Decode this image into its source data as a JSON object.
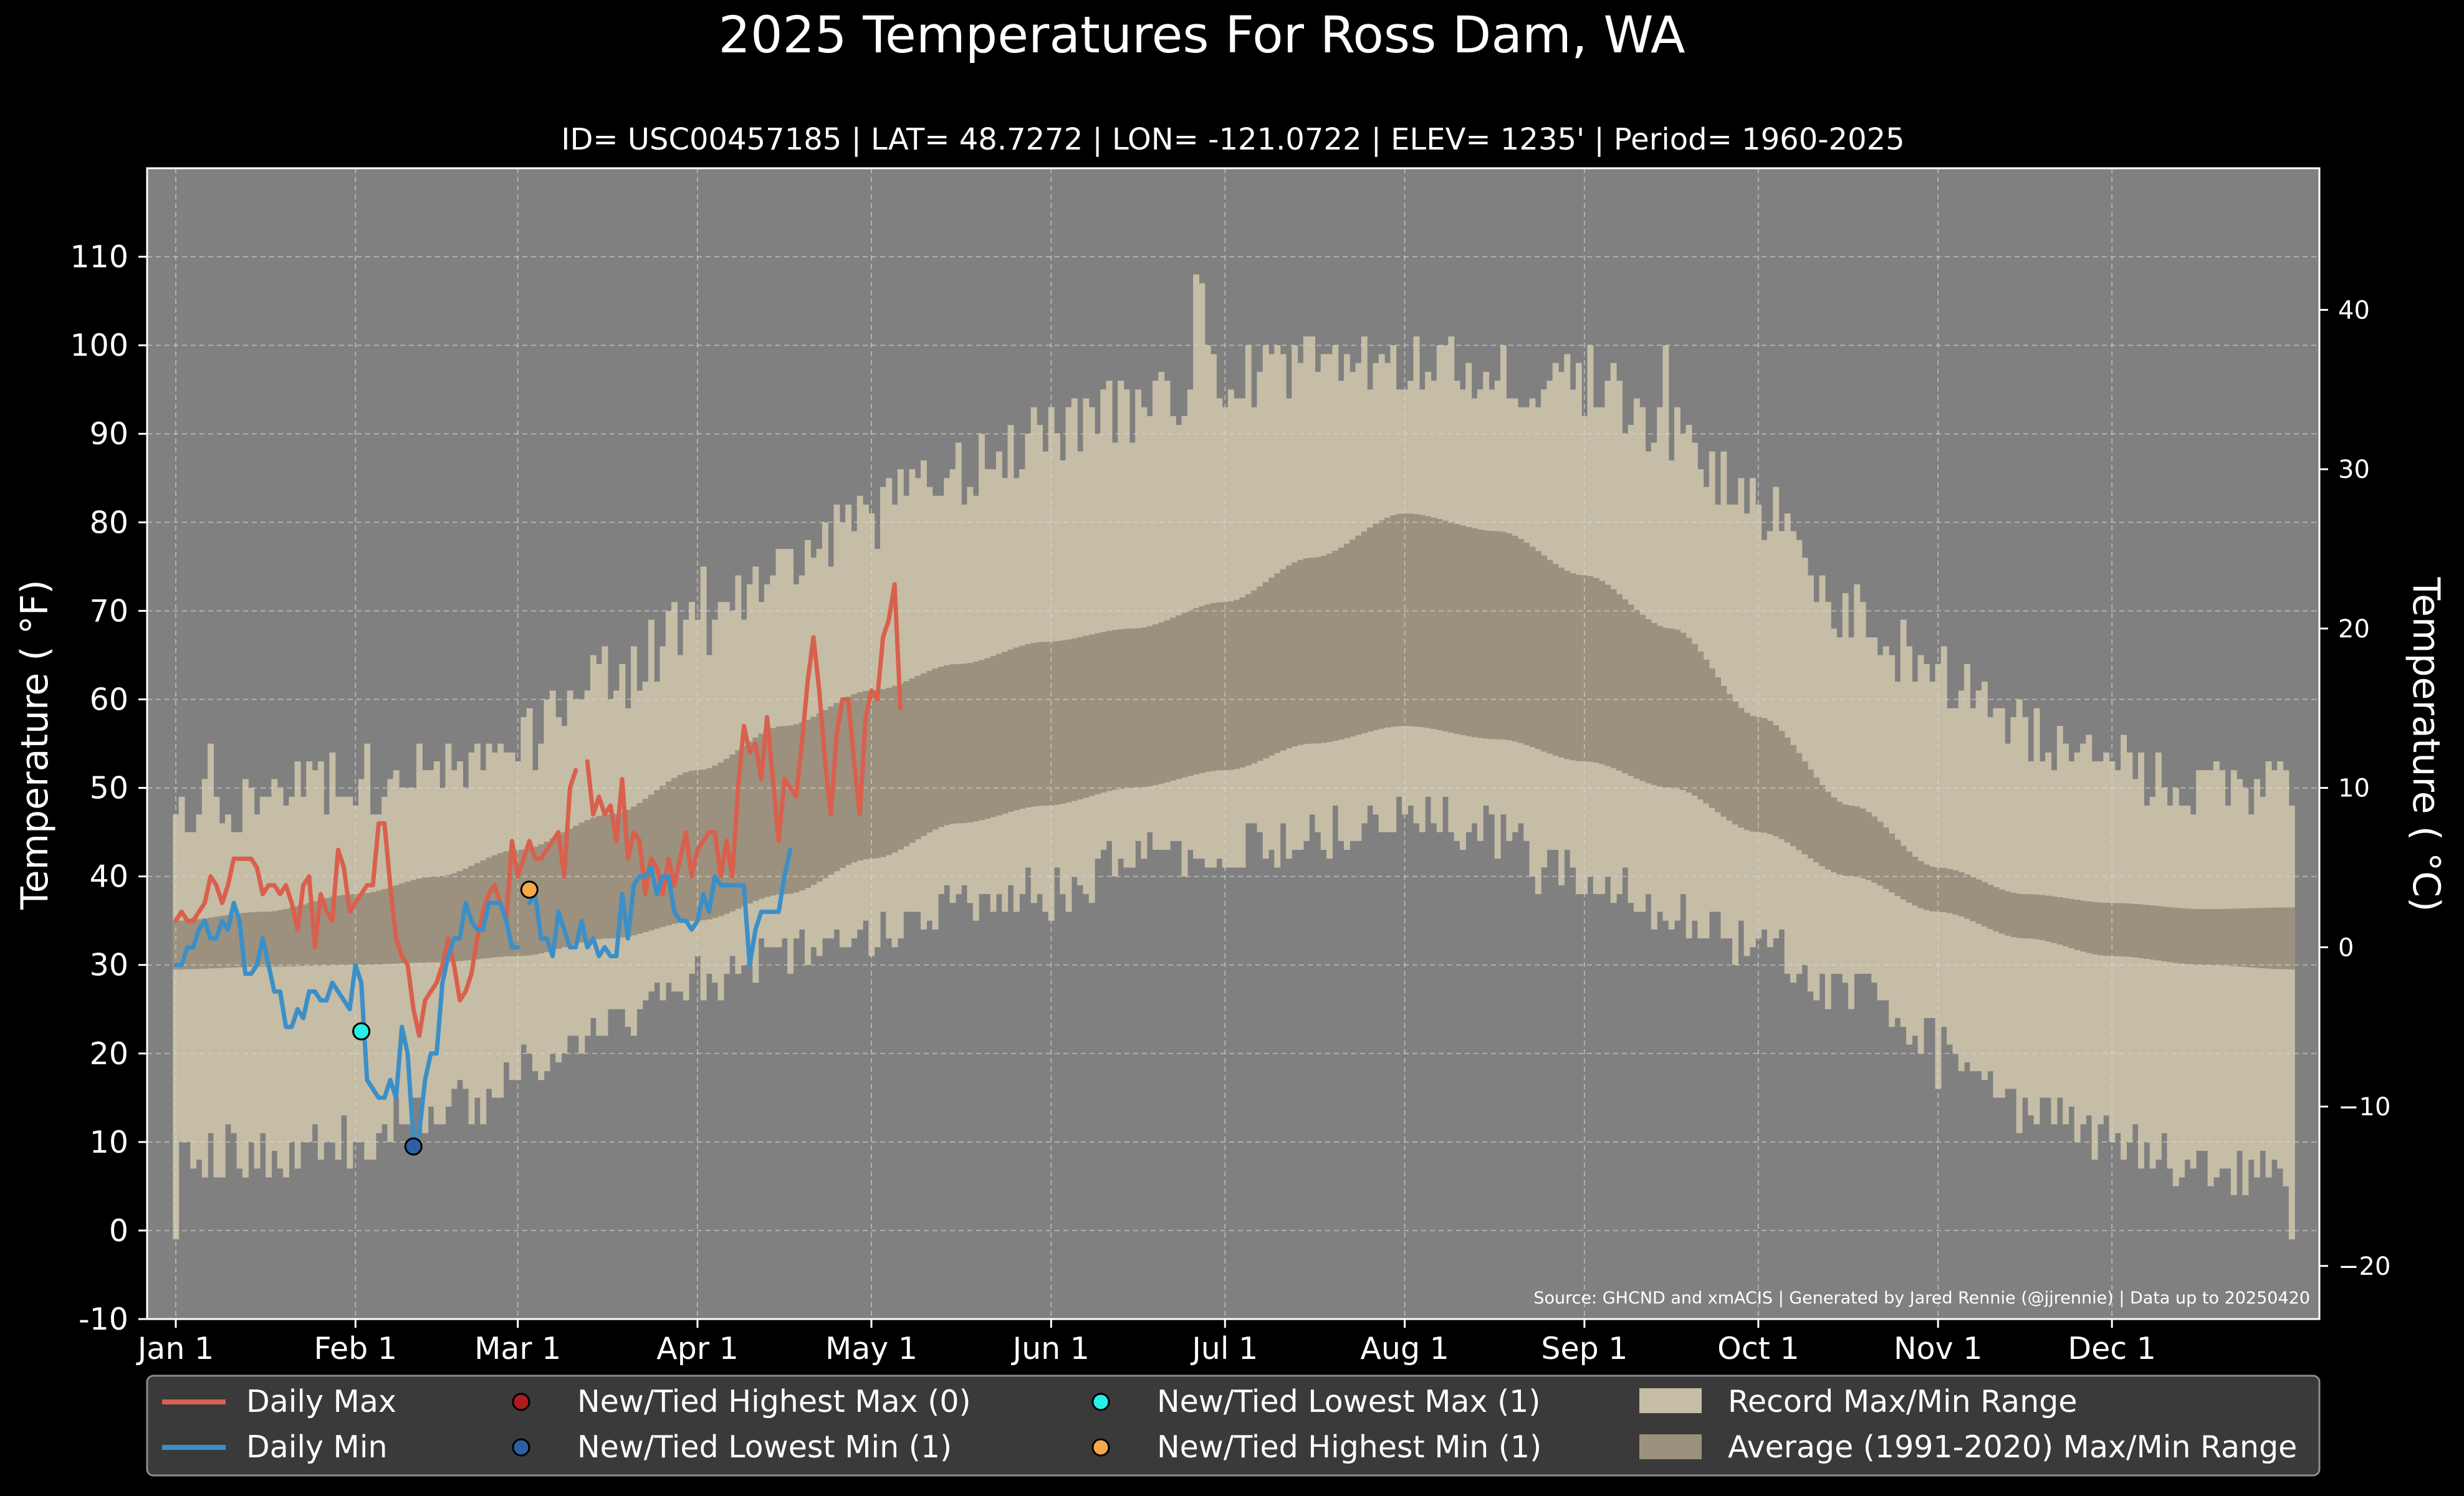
{
  "chart_data": {
    "type": "area",
    "title": "2025 Temperatures For Ross Dam, WA",
    "subtitle": "ID= USC00457185 | LAT= 48.7272 | LON= -121.0722 | ELEV= 1235' | Period= 1960-2025",
    "ylabel_left": "Temperature ( °F)",
    "ylabel_right": "Temperature ( °C)",
    "source": "Source: GHCND and xmACIS | Generated by Jared Rennie (@jjrennie) | Data up to 20250420",
    "xlim": [
      0,
      365
    ],
    "ylim": [
      -10,
      120
    ],
    "grid": true,
    "colors": {
      "page_bg": "#000000",
      "plot_bg": "#808080",
      "record": "#c5bda6",
      "normal": "#9b917e",
      "daily_max": "#d9604d",
      "daily_min": "#3b8fc8",
      "highest_max": "#b01b1e",
      "lowest_min": "#2c5fa6",
      "lowest_max": "#27f0e8",
      "highest_min": "#f5a94a"
    },
    "x_ticks": [
      {
        "day": 0,
        "label": "Jan 1"
      },
      {
        "day": 31,
        "label": "Feb 1"
      },
      {
        "day": 59,
        "label": "Mar 1"
      },
      {
        "day": 90,
        "label": "Apr 1"
      },
      {
        "day": 120,
        "label": "May 1"
      },
      {
        "day": 151,
        "label": "Jun 1"
      },
      {
        "day": 181,
        "label": "Jul 1"
      },
      {
        "day": 212,
        "label": "Aug 1"
      },
      {
        "day": 243,
        "label": "Sep 1"
      },
      {
        "day": 273,
        "label": "Oct 1"
      },
      {
        "day": 304,
        "label": "Nov 1"
      },
      {
        "day": 334,
        "label": "Dec 1"
      }
    ],
    "y_ticks_f": [
      "-10",
      "0",
      "10",
      "20",
      "30",
      "40",
      "50",
      "60",
      "70",
      "80",
      "90",
      "100",
      "110"
    ],
    "y_ticks_c": [
      {
        "c": -20,
        "label": "−20"
      },
      {
        "c": -10,
        "label": "−10"
      },
      {
        "c": 0,
        "label": "0"
      },
      {
        "c": 10,
        "label": "10"
      },
      {
        "c": 20,
        "label": "20"
      },
      {
        "c": 30,
        "label": "30"
      },
      {
        "c": 40,
        "label": "40"
      }
    ],
    "record_max_knots": [
      [
        0,
        47
      ],
      [
        15,
        49
      ],
      [
        30,
        51
      ],
      [
        45,
        52
      ],
      [
        59,
        55
      ],
      [
        75,
        62
      ],
      [
        90,
        68
      ],
      [
        105,
        76
      ],
      [
        120,
        81
      ],
      [
        135,
        86
      ],
      [
        150,
        90
      ],
      [
        165,
        93
      ],
      [
        181,
        96
      ],
      [
        195,
        98
      ],
      [
        212,
        98
      ],
      [
        228,
        97
      ],
      [
        243,
        96
      ],
      [
        258,
        90
      ],
      [
        273,
        82
      ],
      [
        289,
        70
      ],
      [
        304,
        63
      ],
      [
        319,
        56
      ],
      [
        334,
        52
      ],
      [
        350,
        50
      ],
      [
        365,
        49
      ]
    ],
    "record_max_noise": 4,
    "record_max_spikes": [
      {
        "day": 6,
        "value": 55
      },
      {
        "day": 72,
        "value": 65
      },
      {
        "day": 91,
        "value": 75
      },
      {
        "day": 176,
        "value": 108
      },
      {
        "day": 177,
        "value": 107
      },
      {
        "day": 257,
        "value": 100
      }
    ],
    "record_min_knots": [
      [
        0,
        9
      ],
      [
        15,
        9
      ],
      [
        31,
        10
      ],
      [
        40,
        13
      ],
      [
        50,
        14
      ],
      [
        59,
        18
      ],
      [
        75,
        24
      ],
      [
        90,
        28
      ],
      [
        105,
        31
      ],
      [
        120,
        34
      ],
      [
        135,
        36
      ],
      [
        150,
        38
      ],
      [
        165,
        42
      ],
      [
        181,
        43
      ],
      [
        196,
        45
      ],
      [
        212,
        47
      ],
      [
        228,
        45
      ],
      [
        243,
        40
      ],
      [
        258,
        36
      ],
      [
        273,
        32
      ],
      [
        289,
        27
      ],
      [
        304,
        22
      ],
      [
        319,
        14
      ],
      [
        334,
        10
      ],
      [
        350,
        7
      ],
      [
        365,
        6
      ]
    ],
    "record_min_noise": 3,
    "record_min_spikes": [
      {
        "day": 0,
        "value": -1
      },
      {
        "day": 365,
        "value": -1
      },
      {
        "day": 304,
        "value": 16
      },
      {
        "day": 235,
        "value": 38
      }
    ],
    "normal_max_knots": [
      [
        0,
        35
      ],
      [
        15,
        36
      ],
      [
        31,
        38
      ],
      [
        45,
        40
      ],
      [
        59,
        43
      ],
      [
        75,
        47
      ],
      [
        90,
        52
      ],
      [
        105,
        57
      ],
      [
        120,
        61
      ],
      [
        135,
        64
      ],
      [
        150,
        66.5
      ],
      [
        165,
        68
      ],
      [
        181,
        71
      ],
      [
        196,
        76
      ],
      [
        212,
        81
      ],
      [
        228,
        79
      ],
      [
        243,
        74
      ],
      [
        258,
        68
      ],
      [
        273,
        58
      ],
      [
        289,
        48
      ],
      [
        304,
        41
      ],
      [
        319,
        38
      ],
      [
        334,
        37
      ],
      [
        350,
        36.3
      ],
      [
        365,
        36.5
      ]
    ],
    "normal_min_knots": [
      [
        0,
        29.5
      ],
      [
        15,
        29.8
      ],
      [
        31,
        30
      ],
      [
        45,
        30.3
      ],
      [
        59,
        31
      ],
      [
        75,
        33
      ],
      [
        90,
        35
      ],
      [
        105,
        38
      ],
      [
        120,
        42
      ],
      [
        135,
        46
      ],
      [
        150,
        48
      ],
      [
        165,
        50
      ],
      [
        181,
        52
      ],
      [
        196,
        55
      ],
      [
        212,
        57
      ],
      [
        228,
        55.5
      ],
      [
        243,
        53
      ],
      [
        258,
        50
      ],
      [
        273,
        45
      ],
      [
        289,
        40
      ],
      [
        304,
        36
      ],
      [
        319,
        33
      ],
      [
        334,
        31
      ],
      [
        350,
        30
      ],
      [
        365,
        29.5
      ]
    ],
    "daily_max": [
      35,
      36,
      35,
      35,
      36,
      37,
      40,
      39,
      37,
      39,
      42,
      42,
      42,
      42,
      41,
      38,
      39,
      39,
      38,
      39,
      37,
      34,
      39,
      40,
      32,
      38,
      36,
      35,
      43,
      41,
      36,
      37,
      38,
      39,
      39,
      46,
      46,
      39,
      33,
      31,
      30,
      25,
      22,
      26,
      27,
      28,
      30,
      33,
      30,
      26,
      27,
      29,
      33,
      36,
      38,
      39,
      37,
      35,
      44,
      40,
      42,
      44,
      42,
      42,
      43,
      44,
      45,
      40,
      50,
      52,
      null,
      53,
      47,
      49,
      47,
      48,
      44,
      51,
      42,
      45,
      44,
      38,
      42,
      41,
      38,
      42,
      39,
      42,
      45,
      40,
      43,
      44,
      45,
      45,
      40,
      44,
      40,
      50,
      57,
      54,
      55,
      51,
      58,
      51,
      44,
      51,
      50,
      49,
      55,
      62,
      67,
      61,
      53,
      47,
      56,
      60,
      60,
      53,
      47,
      58,
      61,
      60,
      67,
      69,
      73,
      59
    ],
    "daily_min": [
      30,
      30,
      32,
      32,
      34,
      35,
      33,
      33,
      35,
      34,
      37,
      35,
      29,
      29,
      30,
      33,
      30,
      27,
      27,
      23,
      23,
      25,
      24,
      27,
      27,
      26,
      26,
      28,
      27,
      26,
      25,
      30,
      28,
      17,
      16,
      15,
      15,
      17,
      15,
      23,
      20,
      10,
      11,
      17,
      20,
      20,
      28,
      31,
      33,
      33,
      37,
      35,
      34,
      34,
      37,
      37,
      37,
      35,
      32,
      32,
      null,
      37,
      38,
      33,
      33,
      31,
      36,
      34,
      32,
      32,
      35,
      32,
      33,
      31,
      32,
      31,
      31,
      38,
      33,
      39,
      40,
      40,
      41,
      38,
      40,
      40,
      36,
      35,
      35,
      34,
      35,
      38,
      36,
      40,
      39,
      39,
      39,
      39,
      39,
      30,
      34,
      36,
      36,
      36,
      36,
      40,
      43
    ],
    "record_points": [
      {
        "day": 32,
        "value": 22.5,
        "type": "lowest_max"
      },
      {
        "day": 41,
        "value": 9.5,
        "type": "lowest_min"
      },
      {
        "day": 61,
        "value": 38.5,
        "type": "highest_min"
      }
    ],
    "legend": {
      "daily_max": "Daily Max",
      "daily_min": "Daily Min",
      "highest_max": "New/Tied Highest Max (0)",
      "lowest_min": "New/Tied Lowest Min (1)",
      "lowest_max": "New/Tied Lowest Max (1)",
      "highest_min": "New/Tied Highest Min (1)",
      "record_range": "Record Max/Min Range",
      "normal_range": "Average (1991-2020) Max/Min Range"
    }
  }
}
